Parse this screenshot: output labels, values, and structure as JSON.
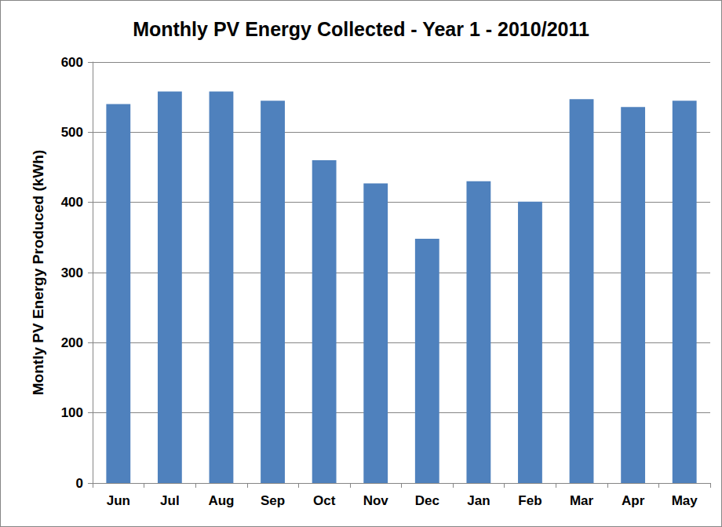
{
  "chart_data": {
    "type": "bar",
    "title": "Monthly PV Energy Collected - Year 1 - 2010/2011",
    "y_label": "Montly PV Energy Produced (kWh)",
    "categories": [
      "Jun",
      "Jul",
      "Aug",
      "Sep",
      "Oct",
      "Nov",
      "Dec",
      "Jan",
      "Feb",
      "Mar",
      "Apr",
      "May"
    ],
    "values": [
      540,
      558,
      558,
      545,
      460,
      427,
      348,
      430,
      401,
      547,
      536,
      545
    ],
    "color": "#4f81bd",
    "ylim": [
      0,
      600
    ],
    "yticks": [
      0,
      100,
      200,
      300,
      400,
      500,
      600
    ],
    "grid": true
  }
}
